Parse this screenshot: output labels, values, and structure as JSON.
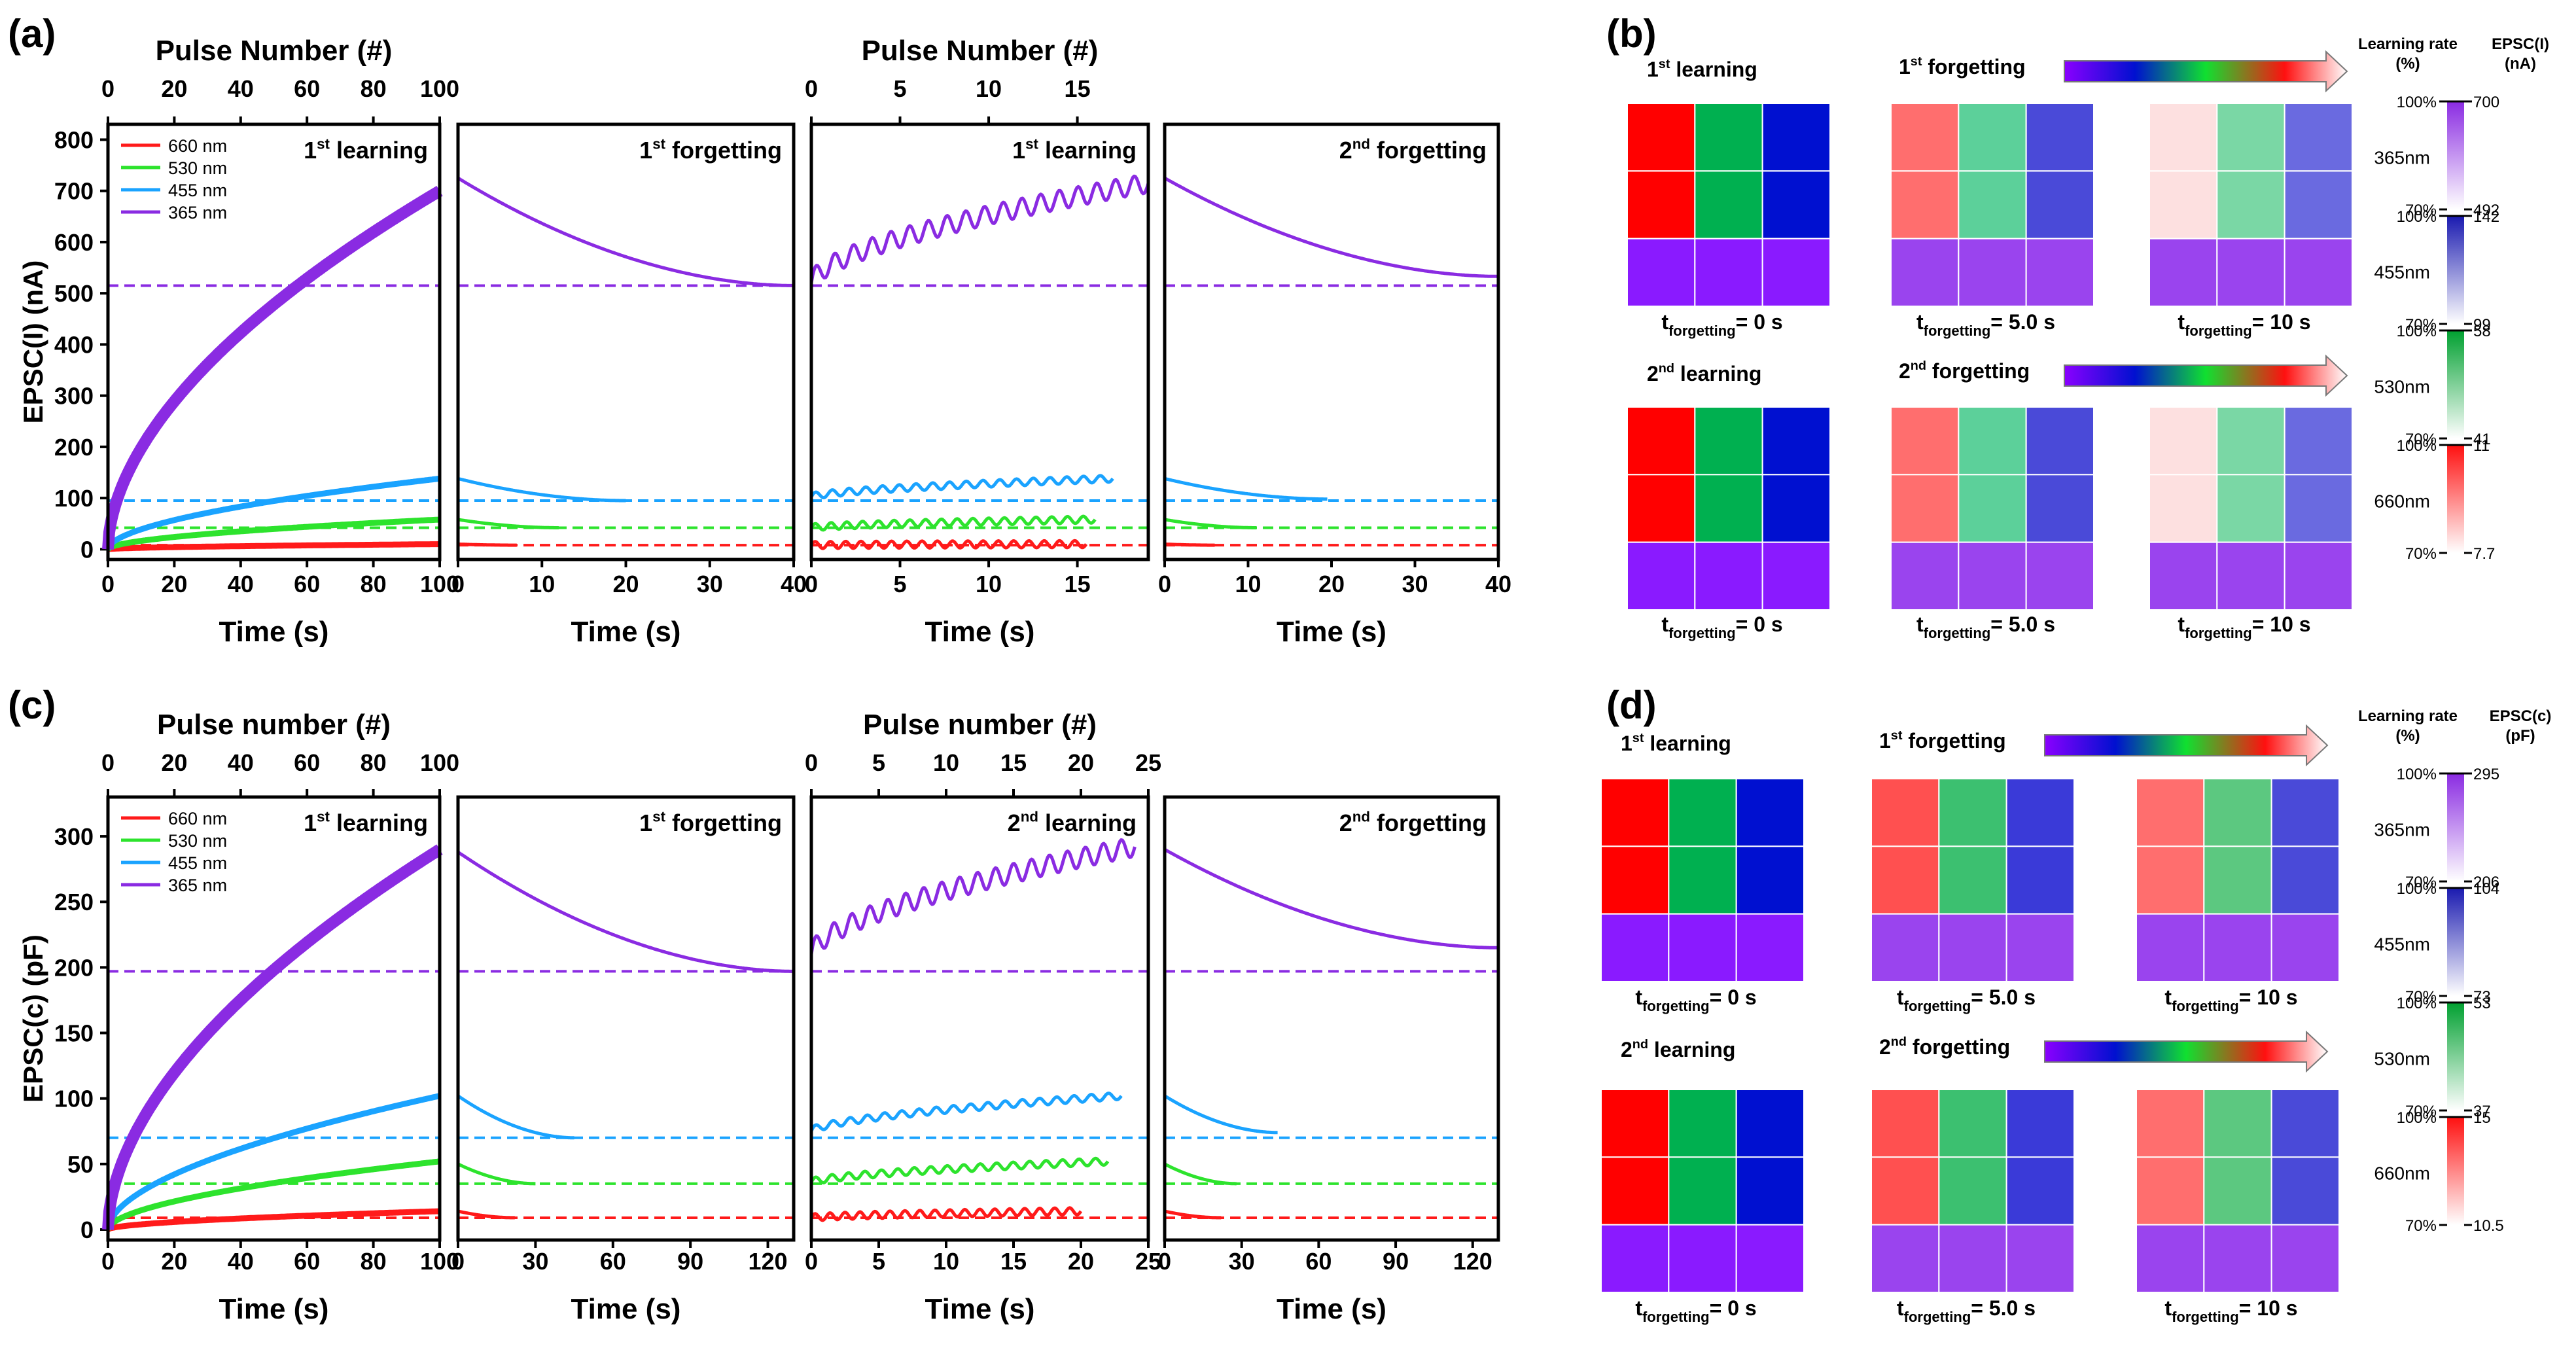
{
  "figure": {
    "panel_labels": [
      "(a)",
      "(b)",
      "(c)",
      "(d)"
    ],
    "colors": {
      "nm660": "#ff1a1a",
      "nm530": "#2de32d",
      "nm455": "#1aa3ff",
      "nm365": "#8a2be2"
    },
    "legend": [
      "660 nm",
      "530 nm",
      "455 nm",
      "365 nm"
    ]
  },
  "chart_data": [
    {
      "type": "line",
      "panel": "(a)",
      "ylabel": "EPSC(I) (nA)",
      "ylim": [
        -20,
        830
      ],
      "yticks": [
        0,
        100,
        200,
        300,
        400,
        500,
        600,
        700,
        800
      ],
      "top_axis_labels": [
        "Pulse Number (#)",
        "Pulse Number (#)"
      ],
      "xlabel": "Time (s)",
      "dashed_baselines": {
        "365 nm": 515,
        "455 nm": 95,
        "530 nm": 42,
        "660 nm": 8
      },
      "subplots": [
        {
          "title_base": "1",
          "title_sup": "st",
          "title_rest": " learning",
          "kind": "learn",
          "xlim": [
            0,
            100
          ],
          "xticks": [
            0,
            20,
            40,
            60,
            80,
            100
          ],
          "top_xlim": [
            0,
            100
          ],
          "top_xticks": [
            0,
            20,
            40,
            60,
            80,
            100
          ],
          "series": [
            {
              "name": "660 nm",
              "start": 0,
              "end": 10,
              "t_end": 100
            },
            {
              "name": "530 nm",
              "start": 0,
              "end": 58,
              "t_end": 100
            },
            {
              "name": "455 nm",
              "start": 0,
              "end": 138,
              "t_end": 100
            },
            {
              "name": "365 nm",
              "start": 0,
              "end": 700,
              "t_end": 100
            }
          ]
        },
        {
          "title_base": "1",
          "title_sup": "st",
          "title_rest": " forgetting",
          "kind": "forget",
          "xlim": [
            0,
            40
          ],
          "xticks": [
            0,
            10,
            20,
            30,
            40
          ],
          "series": [
            {
              "name": "660 nm",
              "start": 10,
              "end": 8,
              "t_end": 7
            },
            {
              "name": "530 nm",
              "start": 58,
              "end": 42,
              "t_end": 12
            },
            {
              "name": "455 nm",
              "start": 138,
              "end": 95,
              "t_end": 20
            },
            {
              "name": "365 nm",
              "start": 725,
              "end": 515,
              "t_end": 40
            }
          ]
        },
        {
          "title_base": "1",
          "title_sup": "st",
          "title_rest": " learning",
          "kind": "relearn",
          "xlim": [
            0,
            19
          ],
          "xticks": [
            0,
            5,
            10,
            15
          ],
          "top_xlim": [
            0,
            19
          ],
          "top_xticks": [
            0,
            5,
            10,
            15
          ],
          "series": [
            {
              "name": "660 nm",
              "start": 8,
              "end": 10,
              "t_end": 15.5
            },
            {
              "name": "530 nm",
              "start": 42,
              "end": 58,
              "t_end": 16
            },
            {
              "name": "455 nm",
              "start": 102,
              "end": 138,
              "t_end": 17
            },
            {
              "name": "365 nm",
              "start": 520,
              "end": 715,
              "t_end": 19
            }
          ]
        },
        {
          "title_base": "2",
          "title_sup": "nd",
          "title_rest": " forgetting",
          "kind": "forget",
          "xlim": [
            0,
            40
          ],
          "xticks": [
            0,
            10,
            20,
            30,
            40
          ],
          "series": [
            {
              "name": "660 nm",
              "start": 10,
              "end": 8,
              "t_end": 6
            },
            {
              "name": "530 nm",
              "start": 58,
              "end": 42,
              "t_end": 11
            },
            {
              "name": "455 nm",
              "start": 138,
              "end": 98,
              "t_end": 19.5
            },
            {
              "name": "365 nm",
              "start": 725,
              "end": 533,
              "t_end": 40
            }
          ]
        }
      ]
    },
    {
      "type": "line",
      "panel": "(c)",
      "ylabel": "EPSC(c) (pF)",
      "ylim": [
        -8,
        330
      ],
      "yticks": [
        0,
        50,
        100,
        150,
        200,
        250,
        300
      ],
      "top_axis_labels": [
        "Pulse number (#)",
        "Pulse number (#)"
      ],
      "xlabel": "Time (s)",
      "dashed_baselines": {
        "365 nm": 197,
        "455 nm": 70,
        "530 nm": 35,
        "660 nm": 9
      },
      "subplots": [
        {
          "title_base": "1",
          "title_sup": "st",
          "title_rest": " learning",
          "kind": "learn",
          "xlim": [
            0,
            100
          ],
          "xticks": [
            0,
            20,
            40,
            60,
            80,
            100
          ],
          "top_xlim": [
            0,
            100
          ],
          "top_xticks": [
            0,
            20,
            40,
            60,
            80,
            100
          ],
          "series": [
            {
              "name": "660 nm",
              "start": 0,
              "end": 14,
              "t_end": 100
            },
            {
              "name": "530 nm",
              "start": 0,
              "end": 52,
              "t_end": 100
            },
            {
              "name": "455 nm",
              "start": 0,
              "end": 102,
              "t_end": 100
            },
            {
              "name": "365 nm",
              "start": 0,
              "end": 290,
              "t_end": 100
            }
          ]
        },
        {
          "title_base": "1",
          "title_sup": "st",
          "title_rest": " forgetting",
          "kind": "forget",
          "xlim": [
            0,
            130
          ],
          "xticks": [
            0,
            30,
            60,
            90,
            120
          ],
          "series": [
            {
              "name": "660 nm",
              "start": 14,
              "end": 9,
              "t_end": 22
            },
            {
              "name": "530 nm",
              "start": 50,
              "end": 35,
              "t_end": 30
            },
            {
              "name": "455 nm",
              "start": 102,
              "end": 70,
              "t_end": 45
            },
            {
              "name": "365 nm",
              "start": 288,
              "end": 197,
              "t_end": 130
            }
          ]
        },
        {
          "title_base": "2",
          "title_sup": "nd",
          "title_rest": " learning",
          "kind": "relearn",
          "xlim": [
            0,
            25
          ],
          "xticks": [
            0,
            5,
            10,
            15,
            20,
            25
          ],
          "top_xlim": [
            0,
            25
          ],
          "top_xticks": [
            0,
            5,
            10,
            15,
            20,
            25
          ],
          "series": [
            {
              "name": "660 nm",
              "start": 9,
              "end": 14,
              "t_end": 20
            },
            {
              "name": "530 nm",
              "start": 36,
              "end": 52,
              "t_end": 22
            },
            {
              "name": "455 nm",
              "start": 75,
              "end": 102,
              "t_end": 23
            },
            {
              "name": "365 nm",
              "start": 210,
              "end": 292,
              "t_end": 24
            }
          ]
        },
        {
          "title_base": "2",
          "title_sup": "nd",
          "title_rest": " forgetting",
          "kind": "forget",
          "xlim": [
            0,
            130
          ],
          "xticks": [
            0,
            30,
            60,
            90,
            120
          ],
          "series": [
            {
              "name": "660 nm",
              "start": 14,
              "end": 9,
              "t_end": 22
            },
            {
              "name": "530 nm",
              "start": 50,
              "end": 35,
              "t_end": 28
            },
            {
              "name": "455 nm",
              "start": 102,
              "end": 74,
              "t_end": 44
            },
            {
              "name": "365 nm",
              "start": 290,
              "end": 215,
              "t_end": 130
            }
          ]
        }
      ]
    },
    {
      "type": "heatmap",
      "panel": "(b)",
      "rows": [
        {
          "learn_title": {
            "base": "1",
            "sup": "st",
            "rest": " learning"
          },
          "forget_title": {
            "base": "1",
            "sup": "st",
            "rest": " forgetting"
          },
          "grids": [
            {
              "caption": "= 0 s",
              "cells": [
                "#ff0000",
                "#00b050",
                "#0010d0",
                "#ff0000",
                "#00b050",
                "#0010d0",
                "#8a1aff",
                "#8a1aff",
                "#8a1aff"
              ]
            },
            {
              "caption": "= 5.0 s",
              "cells": [
                "#ff6e6e",
                "#5cd09a",
                "#4a4ad8",
                "#ff6e6e",
                "#5cd09a",
                "#4a4ad8",
                "#9a44ee",
                "#9a44ee",
                "#9a44ee"
              ]
            },
            {
              "caption": "= 10 s",
              "cells": [
                "#fde0e0",
                "#7ad7a5",
                "#6a6ae0",
                "#fde0e0",
                "#7ad7a5",
                "#6a6ae0",
                "#9a44ee",
                "#9a44ee",
                "#9a44ee"
              ]
            }
          ]
        },
        {
          "learn_title": {
            "base": "2",
            "sup": "nd",
            "rest": " learning"
          },
          "forget_title": {
            "base": "2",
            "sup": "nd",
            "rest": " forgetting"
          },
          "grids": [
            {
              "caption": "= 0 s",
              "cells": [
                "#ff0000",
                "#00b050",
                "#0010d0",
                "#ff0000",
                "#00b050",
                "#0010d0",
                "#8a1aff",
                "#8a1aff",
                "#8a1aff"
              ]
            },
            {
              "caption": "= 5.0 s",
              "cells": [
                "#ff6e6e",
                "#5cd09a",
                "#4a4ad8",
                "#ff6e6e",
                "#5cd09a",
                "#4a4ad8",
                "#9a44ee",
                "#9a44ee",
                "#9a44ee"
              ]
            },
            {
              "caption": "= 10 s",
              "cells": [
                "#fde0e0",
                "#7ad7a5",
                "#6a6ae0",
                "#fde0e0",
                "#7ad7a5",
                "#6a6ae0",
                "#9a44ee",
                "#9a44ee",
                "#9a44ee"
              ]
            }
          ]
        }
      ],
      "caption_t": "t",
      "caption_sub": "forgetting",
      "scale_header_left": [
        "Learning rate",
        "(%)"
      ],
      "scale_header_right": [
        "EPSC(I)",
        "(nA)"
      ],
      "scales": [
        {
          "label": "365nm",
          "color": "#8a2be2",
          "top_pct": "100%",
          "bottom_pct": "70%",
          "top_val": "700",
          "bottom_val": "492"
        },
        {
          "label": "455nm",
          "color": "#1a1ab0",
          "top_pct": "100%",
          "bottom_pct": "70%",
          "top_val": "142",
          "bottom_val": "99"
        },
        {
          "label": "530nm",
          "color": "#00a030",
          "top_pct": "100%",
          "bottom_pct": "70%",
          "top_val": "58",
          "bottom_val": "41"
        },
        {
          "label": "660nm",
          "color": "#ff1010",
          "top_pct": "100%",
          "bottom_pct": "70%",
          "top_val": "11",
          "bottom_val": "7.7"
        }
      ]
    },
    {
      "type": "heatmap",
      "panel": "(d)",
      "rows": [
        {
          "learn_title": {
            "base": "1",
            "sup": "st",
            "rest": " learning"
          },
          "forget_title": {
            "base": "1",
            "sup": "st",
            "rest": " forgetting"
          },
          "grids": [
            {
              "caption": "= 0 s",
              "cells": [
                "#ff0000",
                "#00b050",
                "#0010d0",
                "#ff0000",
                "#00b050",
                "#0010d0",
                "#8a1aff",
                "#8a1aff",
                "#8a1aff"
              ]
            },
            {
              "caption": "= 5.0 s",
              "cells": [
                "#ff5050",
                "#3cc070",
                "#3a3ad8",
                "#ff5050",
                "#3cc070",
                "#3a3ad8",
                "#9a44ee",
                "#9a44ee",
                "#9a44ee"
              ]
            },
            {
              "caption": "= 10 s",
              "cells": [
                "#ff6e6e",
                "#5cc880",
                "#4a4ad8",
                "#ff6e6e",
                "#5cc880",
                "#4a4ad8",
                "#9a44ee",
                "#9a44ee",
                "#9a44ee"
              ]
            }
          ]
        },
        {
          "learn_title": {
            "base": "2",
            "sup": "nd",
            "rest": " learning"
          },
          "forget_title": {
            "base": "2",
            "sup": "nd",
            "rest": " forgetting"
          },
          "grids": [
            {
              "caption": "= 0 s",
              "cells": [
                "#ff0000",
                "#00b050",
                "#0010d0",
                "#ff0000",
                "#00b050",
                "#0010d0",
                "#8a1aff",
                "#8a1aff",
                "#8a1aff"
              ]
            },
            {
              "caption": "= 5.0 s",
              "cells": [
                "#ff5050",
                "#3cc070",
                "#3a3ad8",
                "#ff5050",
                "#3cc070",
                "#3a3ad8",
                "#9a44ee",
                "#9a44ee",
                "#9a44ee"
              ]
            },
            {
              "caption": "= 10 s",
              "cells": [
                "#ff6e6e",
                "#5cc880",
                "#4a4ad8",
                "#ff6e6e",
                "#5cc880",
                "#4a4ad8",
                "#9a44ee",
                "#9a44ee",
                "#9a44ee"
              ]
            }
          ]
        }
      ],
      "caption_t": "t",
      "caption_sub": "forgetting",
      "scale_header_left": [
        "Learning rate",
        "(%)"
      ],
      "scale_header_right": [
        "EPSC(c)",
        "(pF)"
      ],
      "scales": [
        {
          "label": "365nm",
          "color": "#8a2be2",
          "top_pct": "100%",
          "bottom_pct": "70%",
          "top_val": "295",
          "bottom_val": "206"
        },
        {
          "label": "455nm",
          "color": "#1a1ab0",
          "top_pct": "100%",
          "bottom_pct": "70%",
          "top_val": "104",
          "bottom_val": "73"
        },
        {
          "label": "530nm",
          "color": "#00a030",
          "top_pct": "100%",
          "bottom_pct": "70%",
          "top_val": "53",
          "bottom_val": "37"
        },
        {
          "label": "660nm",
          "color": "#ff1010",
          "top_pct": "100%",
          "bottom_pct": "70%",
          "top_val": "15",
          "bottom_val": "10.5"
        }
      ]
    }
  ]
}
